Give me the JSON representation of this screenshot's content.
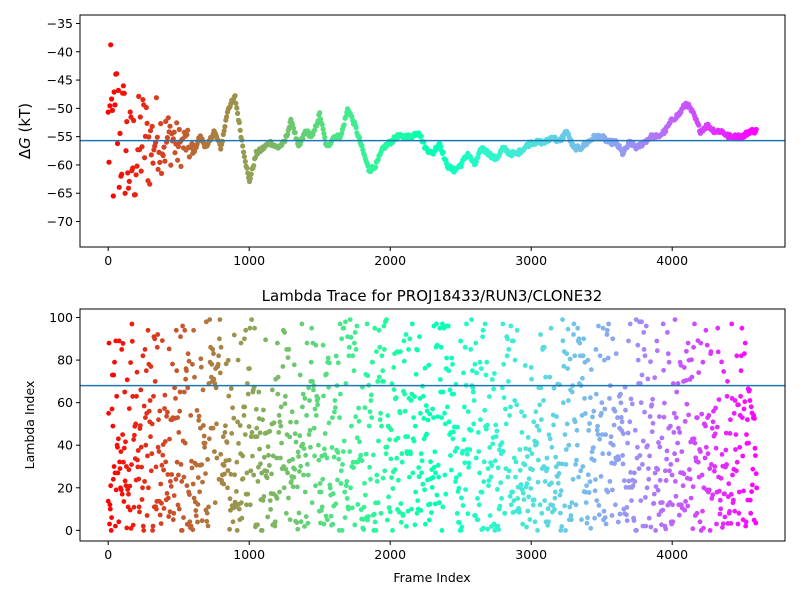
{
  "chart_data": [
    {
      "type": "scatter",
      "title": "",
      "xlabel": "",
      "ylabel_prefix": "Δ",
      "ylabel_symbol": "G",
      "ylabel_suffix": " (kT)",
      "xlim": [
        -200,
        4800
      ],
      "ylim": [
        -74.5,
        -33.5
      ],
      "xticks": [
        0,
        1000,
        2000,
        3000,
        4000
      ],
      "yticks": [
        -70,
        -65,
        -60,
        -55,
        -50,
        -45,
        -40,
        -35
      ],
      "hline": -55.7,
      "hline_color": "#1f77b4",
      "colormap": "rainbow",
      "series": [
        {
          "description_x": "frame",
          "keypoints_x": [
            0,
            20,
            40,
            60,
            80,
            100,
            120,
            150,
            200,
            250,
            300,
            350,
            400,
            450,
            500,
            550,
            600,
            650,
            700,
            750,
            800,
            850,
            900,
            950,
            1000,
            1050,
            1100,
            1150,
            1200,
            1250,
            1300,
            1350,
            1400,
            1450,
            1500,
            1550,
            1600,
            1650,
            1700,
            1750,
            1800,
            1850,
            1900,
            1950,
            2000,
            2050,
            2100,
            2150,
            2200,
            2250,
            2300,
            2350,
            2400,
            2450,
            2500,
            2550,
            2600,
            2650,
            2700,
            2750,
            2800,
            2850,
            2900,
            2950,
            3000,
            3050,
            3100,
            3150,
            3200,
            3250,
            3300,
            3350,
            3400,
            3450,
            3500,
            3550,
            3600,
            3650,
            3700,
            3750,
            3800,
            3850,
            3900,
            3950,
            4000,
            4050,
            4100,
            4150,
            4200,
            4250,
            4300,
            4350,
            4400,
            4450,
            4500,
            4550,
            4600
          ],
          "keypoints_y": [
            -55,
            -52,
            -58,
            -50,
            -57,
            -54,
            -56,
            -60,
            -58,
            -55,
            -57,
            -54,
            -56,
            -55,
            -57,
            -56,
            -58,
            -55,
            -57,
            -54,
            -57,
            -50,
            -48,
            -56,
            -63,
            -58,
            -57,
            -56,
            -57,
            -56,
            -52,
            -57,
            -54,
            -55,
            -51,
            -57,
            -55,
            -55,
            -50,
            -53,
            -57,
            -61,
            -60,
            -57,
            -56,
            -55,
            -55,
            -55,
            -54,
            -57,
            -58,
            -56,
            -60,
            -61,
            -60,
            -58,
            -60,
            -57,
            -58,
            -59,
            -57,
            -58,
            -58,
            -57,
            -56,
            -56,
            -56,
            -55,
            -56,
            -54,
            -57,
            -57,
            -56,
            -55,
            -55,
            -56,
            -56,
            -58,
            -56,
            -57,
            -56,
            -55,
            -55,
            -54,
            -52,
            -51,
            -49,
            -51,
            -54,
            -53,
            -54,
            -54,
            -55,
            -55,
            -55,
            -54,
            -54
          ],
          "noise_until": 600,
          "noise_spread": 12
        }
      ]
    },
    {
      "type": "scatter",
      "title": "Lambda Trace for PROJ18433/RUN3/CLONE32",
      "xlabel": "Frame Index",
      "ylabel": "Lambda Index",
      "xlim": [
        -200,
        4800
      ],
      "ylim": [
        -5,
        104
      ],
      "xticks": [
        0,
        1000,
        2000,
        3000,
        4000
      ],
      "yticks": [
        0,
        20,
        40,
        60,
        80,
        100
      ],
      "hline": 68,
      "hline_color": "#1f77b4",
      "colormap": "rainbow",
      "series": [
        {
          "n_points": 4600,
          "description_y": "lambda index 0-99 switching between frames"
        }
      ]
    }
  ]
}
